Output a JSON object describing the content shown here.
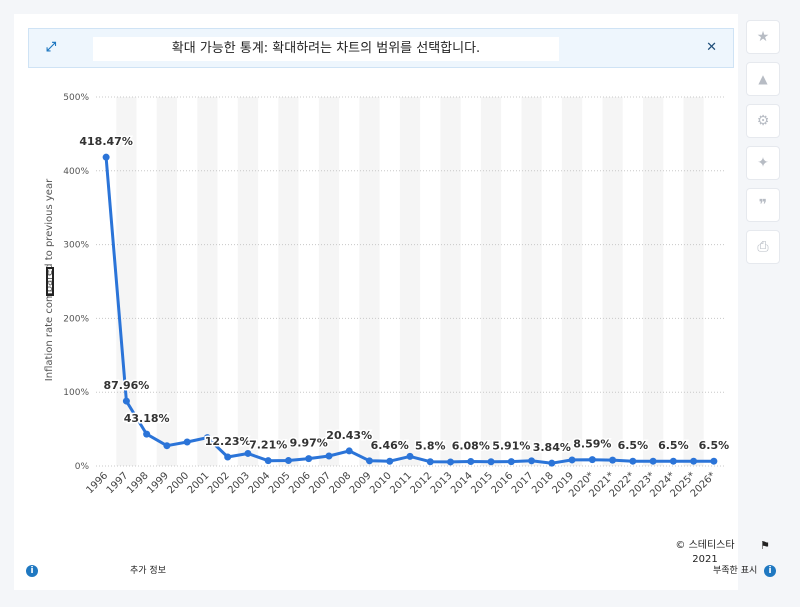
{
  "banner": {
    "text": "확대 가능한 통계: 확대하려는 차트의 범위를 선택합니다.",
    "expand_icon": "expand-icon",
    "close_icon": "close-icon"
  },
  "sidebar": {
    "items": [
      {
        "name": "star-icon",
        "glyph": "★"
      },
      {
        "name": "bell-icon",
        "glyph": "🔔"
      },
      {
        "name": "gear-icon",
        "glyph": "⚙"
      },
      {
        "name": "share-icon",
        "glyph": "⋖"
      },
      {
        "name": "quote-icon",
        "glyph": "❞"
      },
      {
        "name": "print-icon",
        "glyph": "⎙"
      }
    ]
  },
  "footer": {
    "copyright": "© 스테티스타 2021",
    "more_info": "추가 정보",
    "show_source": "부족한 표시"
  },
  "chart_data": {
    "type": "line",
    "title": "",
    "xlabel": "",
    "ylabel": "Inflation rate compared to previous year",
    "ylim": [
      0,
      500
    ],
    "yticks": [
      "0%",
      "100%",
      "200%",
      "300%",
      "400%",
      "500%"
    ],
    "grid": true,
    "color": "#2b74d8",
    "categories": [
      "1996",
      "1997",
      "1998",
      "1999",
      "2000",
      "2001",
      "2002",
      "2003",
      "2004",
      "2005",
      "2006",
      "2007",
      "2008",
      "2009",
      "2010",
      "2011",
      "2012",
      "2013",
      "2014",
      "2015",
      "2016",
      "2017",
      "2018",
      "2019",
      "2020*",
      "2021*",
      "2022*",
      "2023*",
      "2024*",
      "2025*",
      "2026*"
    ],
    "values": [
      418.47,
      87.96,
      43.18,
      27.5,
      32.5,
      38.5,
      12.23,
      17.0,
      7.21,
      7.4,
      9.97,
      13.5,
      20.43,
      7.0,
      6.46,
      13.0,
      5.8,
      5.5,
      6.08,
      5.8,
      5.91,
      7.0,
      3.84,
      8.2,
      8.59,
      8.0,
      6.5,
      6.5,
      6.5,
      6.5,
      6.5
    ],
    "data_labels": [
      {
        "index": 0,
        "text": "418.47%"
      },
      {
        "index": 1,
        "text": "87.96%"
      },
      {
        "index": 2,
        "text": "43.18%"
      },
      {
        "index": 6,
        "text": "12.23%"
      },
      {
        "index": 8,
        "text": "7.21%"
      },
      {
        "index": 10,
        "text": "9.97%"
      },
      {
        "index": 12,
        "text": "20.43%"
      },
      {
        "index": 14,
        "text": "6.46%"
      },
      {
        "index": 16,
        "text": "5.8%"
      },
      {
        "index": 18,
        "text": "6.08%"
      },
      {
        "index": 20,
        "text": "5.91%"
      },
      {
        "index": 22,
        "text": "3.84%"
      },
      {
        "index": 24,
        "text": "8.59%"
      },
      {
        "index": 26,
        "text": "6.5%"
      },
      {
        "index": 28,
        "text": "6.5%"
      },
      {
        "index": 30,
        "text": "6.5%"
      }
    ]
  }
}
